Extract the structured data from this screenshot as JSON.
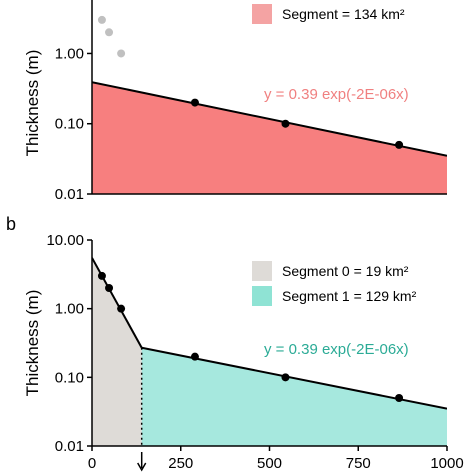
{
  "chart_data": [
    {
      "type": "line",
      "panel_label": "",
      "ylabel": "Thickness (m)",
      "xlabel": "",
      "y_scale": "log",
      "xlim": [
        0,
        1000
      ],
      "ylim": [
        0.01,
        8
      ],
      "y_ticks": [
        {
          "value": 0.01,
          "label": "0.01"
        },
        {
          "value": 0.1,
          "label": "0.10"
        },
        {
          "value": 1,
          "label": "1.00"
        }
      ],
      "x_ticks": [],
      "legend": [
        {
          "label": "Segment = 134 km²",
          "color": "#f4a3a3"
        }
      ],
      "legend_position": "top-right",
      "equation": {
        "text": "y = 0.39 exp(-2E-06x)",
        "color": "#f08080"
      },
      "fill_regions": [
        {
          "x_start": 0,
          "x_end": 1000,
          "color": "#f77f7f"
        }
      ],
      "fit_lines": [
        {
          "x_start": 0,
          "x_end": 1000,
          "y_start": 0.39,
          "y_end": 0.035,
          "color": "#000000"
        }
      ],
      "series": [
        {
          "values_x": [
            28,
            48,
            82
          ],
          "values_y": [
            3.0,
            2.0,
            1.0
          ],
          "color": "#c0c0c0"
        },
        {
          "values_x": [
            290,
            545,
            865
          ],
          "values_y": [
            0.2,
            0.1,
            0.05
          ],
          "color": "#000000"
        }
      ]
    },
    {
      "type": "line",
      "panel_label": "b",
      "ylabel": "Thickness (m)",
      "xlabel": "",
      "y_scale": "log",
      "xlim": [
        0,
        1000
      ],
      "ylim": [
        0.01,
        10
      ],
      "y_ticks": [
        {
          "value": 0.01,
          "label": "0.01"
        },
        {
          "value": 0.1,
          "label": "0.10"
        },
        {
          "value": 1,
          "label": "1.00"
        },
        {
          "value": 10,
          "label": "10.00"
        }
      ],
      "x_ticks": [
        {
          "value": 0,
          "label": "0"
        },
        {
          "value": 250,
          "label": "250"
        },
        {
          "value": 500,
          "label": "500"
        },
        {
          "value": 750,
          "label": "750"
        },
        {
          "value": 1000,
          "label": "1000"
        }
      ],
      "legend": [
        {
          "label": "Segment 0 = 19 km²",
          "color": "#dedbd7"
        },
        {
          "label": "Segment 1 = 129 km²",
          "color": "#8fe3d4"
        }
      ],
      "legend_position": "top-right",
      "equation": {
        "text": "y = 0.39 exp(-2E-06x)",
        "color": "#2bab96"
      },
      "break_x": 140,
      "fill_regions": [
        {
          "x_start": 0,
          "x_end": 140,
          "color": "#dedbd7"
        },
        {
          "x_start": 140,
          "x_end": 1000,
          "color": "#a6e8de"
        }
      ],
      "fit_lines": [
        {
          "x_start": 0,
          "x_end": 140,
          "y_start": 5.5,
          "y_end": 0.27,
          "color": "#000000"
        },
        {
          "x_start": 140,
          "x_end": 1000,
          "y_start": 0.27,
          "y_end": 0.035,
          "color": "#000000"
        }
      ],
      "series": [
        {
          "values_x": [
            28,
            48,
            82,
            290,
            545,
            865
          ],
          "values_y": [
            3.0,
            2.0,
            1.0,
            0.2,
            0.1,
            0.05
          ],
          "color": "#000000"
        }
      ]
    }
  ]
}
